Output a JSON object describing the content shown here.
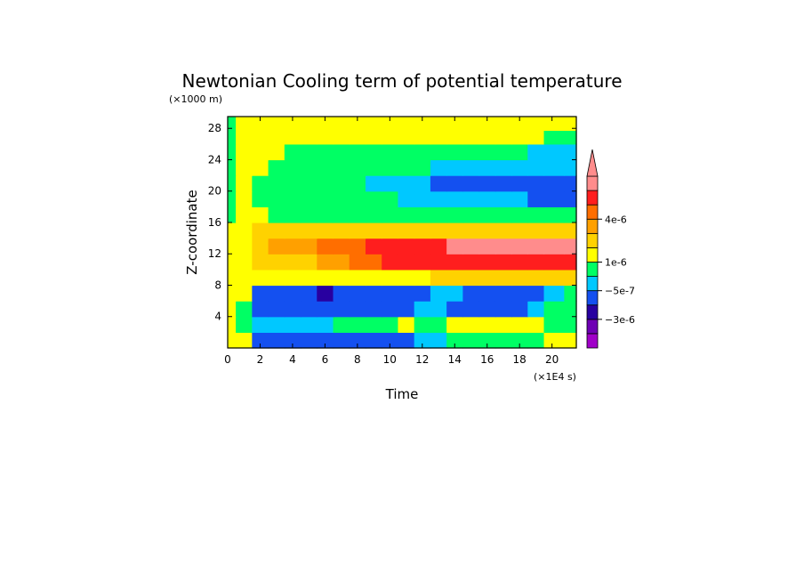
{
  "chart_data": {
    "type": "heatmap",
    "title": "Newtonian Cooling term of potential temperature",
    "xlabel": "Time",
    "ylabel": "Z-coordinate",
    "x_scale_note": "(×1E4 s)",
    "y_scale_note": "(×1000 m)",
    "xlim": [
      0,
      21.5
    ],
    "ylim": [
      0,
      29.5
    ],
    "x_ticks": [
      0,
      2,
      4,
      6,
      8,
      10,
      12,
      14,
      16,
      18,
      20
    ],
    "y_ticks": [
      4,
      8,
      12,
      16,
      20,
      24,
      28
    ],
    "colorbar": {
      "colors": [
        "#a000c8",
        "#6e00b4",
        "#2800a0",
        "#1450f0",
        "#00c8ff",
        "#00ff64",
        "#ffff00",
        "#ffd200",
        "#ffa000",
        "#ff6e00",
        "#ff1e1e",
        "#ff8c8c"
      ],
      "labels": [
        {
          "text": "4e-6",
          "level": 9
        },
        {
          "text": "1e-6",
          "level": 6
        },
        {
          "text": "−5e-7",
          "level": 4
        },
        {
          "text": "−3e-6",
          "level": 2
        }
      ]
    },
    "levels_grid": {
      "x": [
        0,
        1,
        2,
        3,
        4,
        5,
        6,
        7,
        8,
        9,
        10,
        11,
        12,
        13,
        14,
        15,
        16,
        17,
        18,
        19,
        20,
        21.5
      ],
      "y": [
        1,
        3,
        5,
        7,
        9,
        11,
        13,
        15,
        17,
        19,
        21,
        23,
        25,
        27,
        28.5
      ],
      "z": [
        [
          6,
          6,
          3,
          3,
          3,
          3,
          3,
          3,
          3,
          3,
          3,
          3,
          4,
          4,
          5,
          5,
          5,
          5,
          5,
          5,
          6,
          6
        ],
        [
          6,
          5,
          4,
          4,
          4,
          4,
          4,
          5,
          5,
          5,
          5,
          6,
          5,
          5,
          6,
          6,
          6,
          6,
          6,
          6,
          5,
          5
        ],
        [
          6,
          5,
          3,
          3,
          3,
          3,
          3,
          3,
          3,
          3,
          3,
          3,
          4,
          4,
          3,
          3,
          3,
          3,
          3,
          4,
          5,
          5
        ],
        [
          6,
          6,
          3,
          3,
          3,
          3,
          2,
          3,
          3,
          3,
          3,
          3,
          3,
          4,
          4,
          3,
          3,
          3,
          3,
          3,
          4,
          5
        ],
        [
          6,
          6,
          6,
          6,
          6,
          6,
          6,
          6,
          6,
          6,
          6,
          6,
          6,
          7,
          7,
          7,
          7,
          7,
          7,
          7,
          7,
          7
        ],
        [
          6,
          6,
          7,
          7,
          7,
          7,
          8,
          8,
          9,
          9,
          10,
          10,
          10,
          10,
          10,
          10,
          10,
          10,
          10,
          10,
          10,
          10
        ],
        [
          6,
          6,
          7,
          8,
          8,
          8,
          9,
          9,
          9,
          10,
          10,
          10,
          10,
          10,
          11,
          11,
          11,
          11,
          11,
          11,
          11,
          11
        ],
        [
          6,
          6,
          7,
          7,
          7,
          7,
          7,
          7,
          7,
          7,
          7,
          7,
          7,
          7,
          7,
          7,
          7,
          7,
          7,
          7,
          7,
          7
        ],
        [
          5,
          6,
          6,
          5,
          5,
          5,
          5,
          5,
          5,
          5,
          5,
          5,
          5,
          5,
          5,
          5,
          5,
          5,
          5,
          5,
          5,
          5
        ],
        [
          5,
          6,
          5,
          5,
          5,
          5,
          5,
          5,
          5,
          5,
          5,
          4,
          4,
          4,
          4,
          4,
          4,
          4,
          4,
          3,
          3,
          3
        ],
        [
          5,
          6,
          5,
          5,
          5,
          5,
          5,
          5,
          5,
          4,
          4,
          4,
          4,
          3,
          3,
          3,
          3,
          3,
          3,
          3,
          3,
          3
        ],
        [
          5,
          6,
          6,
          5,
          5,
          5,
          5,
          5,
          5,
          5,
          5,
          5,
          5,
          4,
          4,
          4,
          4,
          4,
          4,
          4,
          4,
          4
        ],
        [
          5,
          6,
          6,
          6,
          5,
          5,
          5,
          5,
          5,
          5,
          5,
          5,
          5,
          5,
          5,
          5,
          5,
          5,
          5,
          4,
          4,
          4
        ],
        [
          5,
          6,
          6,
          6,
          6,
          6,
          6,
          6,
          6,
          6,
          6,
          6,
          6,
          6,
          6,
          6,
          6,
          6,
          6,
          6,
          5,
          5
        ],
        [
          5,
          6,
          6,
          6,
          6,
          6,
          6,
          6,
          6,
          6,
          6,
          6,
          6,
          6,
          6,
          6,
          6,
          6,
          6,
          6,
          6,
          6
        ]
      ]
    }
  }
}
